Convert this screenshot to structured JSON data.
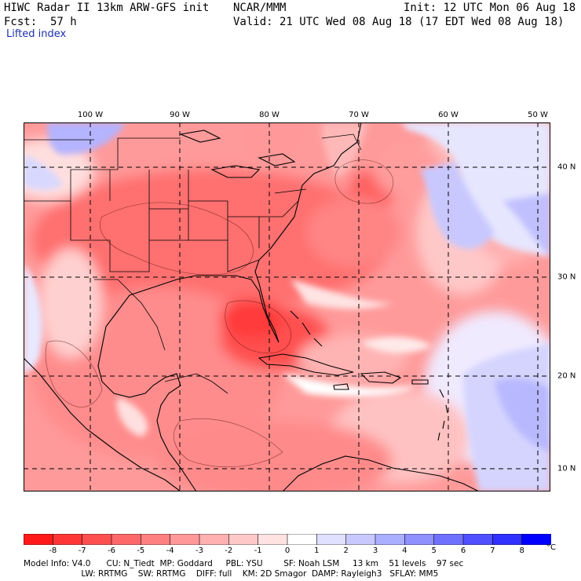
{
  "header": {
    "title": "HIWC Radar II 13km ARW-GFS init",
    "org": "NCAR/MMM",
    "init": "Init: 12 UTC Mon 06 Aug 18",
    "fcst_label": "Fcst:",
    "fcst_value": "57 h",
    "valid": "Valid: 21 UTC Wed 08 Aug 18 (17 EDT Wed 08 Aug 18)",
    "field": "Lifted index"
  },
  "map": {
    "lon_labels": [
      "100 W",
      "90 W",
      "80 W",
      "70 W",
      "60 W",
      "50 W"
    ],
    "lat_labels": [
      "40 N",
      "30 N",
      "20 N",
      "10 N"
    ]
  },
  "colorbar": {
    "unit": "°C",
    "ticks": [
      "-8",
      "-7",
      "-6",
      "-5",
      "-4",
      "-3",
      "-2",
      "-1",
      "0",
      "1",
      "2",
      "3",
      "4",
      "5",
      "6",
      "7",
      "8"
    ],
    "colors": [
      "#ff1a1a",
      "#ff3636",
      "#ff5050",
      "#ff6868",
      "#ff8080",
      "#ff9898",
      "#ffb0b0",
      "#ffc8c8",
      "#ffe2e2",
      "#ffffff",
      "#e0e0ff",
      "#c8c8ff",
      "#aab0ff",
      "#9090ff",
      "#7070ff",
      "#5050ff",
      "#3030ff",
      "#0000ff"
    ]
  },
  "model_info": {
    "line1": "Model Info: V4.0      CU: N_Tiedt  MP: Goddard     PBL: YSU        SF: Noah LSM     13 km    51 levels    97 sec",
    "line2": "                      LW: RRTMG    SW: RRTMG    DIFF: full    KM: 2D Smagor  DAMP: Rayleigh3   SFLAY: MM5"
  }
}
